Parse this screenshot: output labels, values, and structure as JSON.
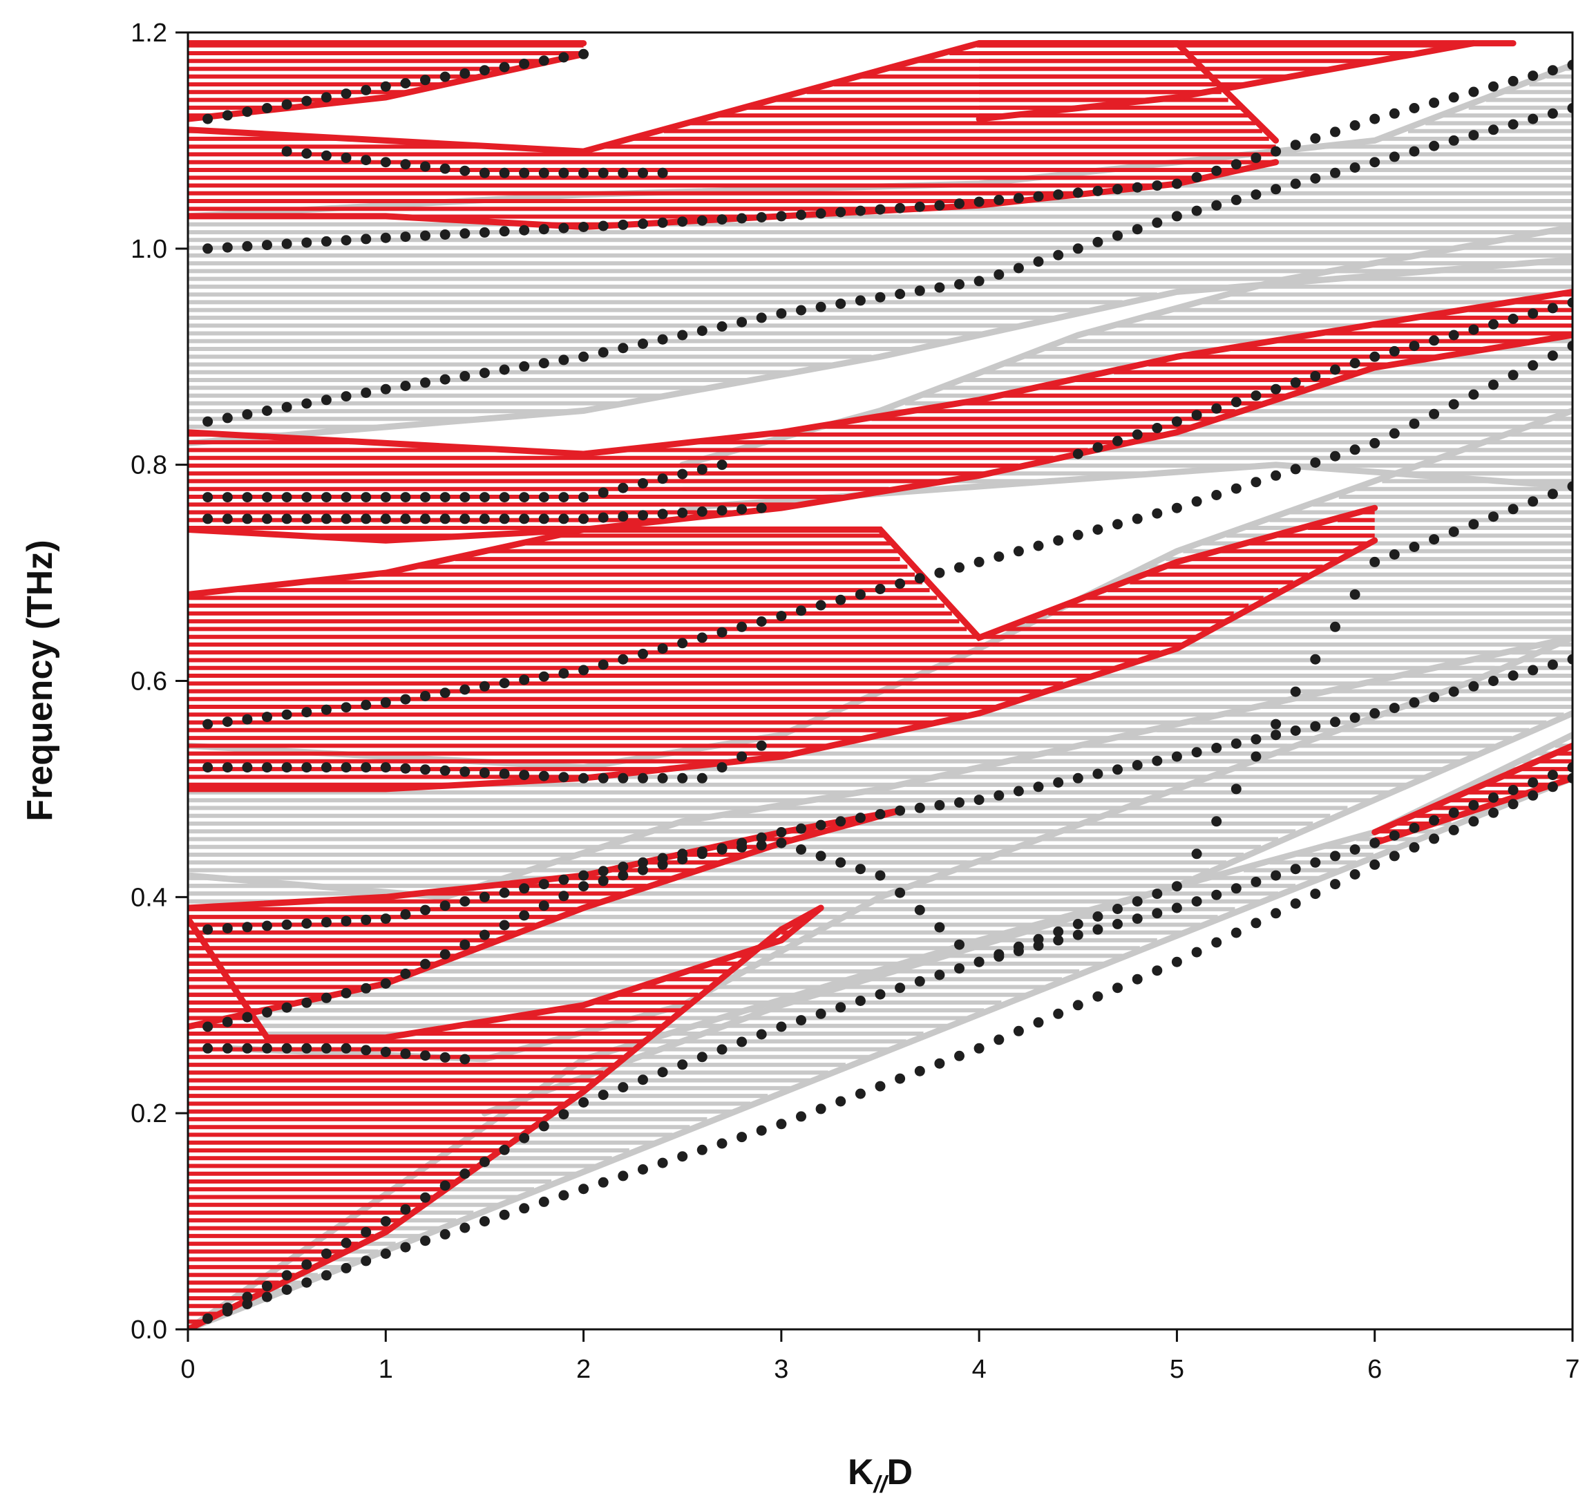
{
  "chart_data": {
    "type": "scatter",
    "title": "",
    "xlabel_main": "K",
    "xlabel_sub": "//",
    "xlabel_tail": "D",
    "ylabel": "Frequency (THz)",
    "xlim": [
      0,
      7
    ],
    "ylim": [
      0,
      1.2
    ],
    "xticks": [
      0,
      1,
      2,
      3,
      4,
      5,
      6,
      7
    ],
    "yticks": [
      0.0,
      0.2,
      0.4,
      0.6,
      0.8,
      1.0,
      1.2
    ],
    "xtick_labels": [
      "0",
      "1",
      "2",
      "3",
      "4",
      "5",
      "6",
      "7"
    ],
    "ytick_labels": [
      "0.0",
      "0.2",
      "0.4",
      "0.6",
      "0.8",
      "1.0",
      "1.2"
    ],
    "grid": false,
    "legend": "none",
    "colors": {
      "band_red": "#e41e26",
      "band_gray": "#c8c8c8",
      "dots": "#1e1e1e",
      "axis": "#111111"
    },
    "bands": [
      {
        "name": "gray-band-1",
        "color": "gray",
        "lower": [
          [
            0,
            0
          ],
          [
            7,
            0.51
          ]
        ],
        "upper": [
          [
            0,
            0
          ],
          [
            2,
            0.25
          ],
          [
            4,
            0.36
          ],
          [
            6,
            0.46
          ],
          [
            7,
            0.55
          ]
        ]
      },
      {
        "name": "gray-band-2",
        "color": "gray",
        "lower": [
          [
            1.5,
            0.2
          ],
          [
            3,
            0.3
          ],
          [
            5,
            0.41
          ],
          [
            7,
            0.57
          ]
        ],
        "upper": [
          [
            0,
            0.42
          ],
          [
            1.3,
            0.4
          ],
          [
            2.5,
            0.47
          ],
          [
            3.5,
            0.5
          ],
          [
            5,
            0.56
          ],
          [
            7,
            0.64
          ]
        ]
      },
      {
        "name": "gray-band-3",
        "color": "gray",
        "lower": [
          [
            0.2,
            0.26
          ],
          [
            1.5,
            0.25
          ],
          [
            2.5,
            0.3
          ],
          [
            3.5,
            0.4
          ],
          [
            5,
            0.5
          ],
          [
            6.5,
            0.6
          ],
          [
            7,
            0.64
          ]
        ],
        "upper": [
          [
            0,
            0.54
          ],
          [
            2,
            0.52
          ],
          [
            3,
            0.55
          ],
          [
            4,
            0.63
          ],
          [
            5,
            0.72
          ],
          [
            7,
            0.85
          ]
        ]
      },
      {
        "name": "gray-band-4",
        "color": "gray",
        "lower": [
          [
            2.5,
            0.76
          ],
          [
            4,
            0.78
          ],
          [
            5.5,
            0.8
          ],
          [
            7,
            0.78
          ]
        ],
        "upper": [
          [
            2.5,
            0.8
          ],
          [
            3.5,
            0.85
          ],
          [
            4.5,
            0.92
          ],
          [
            5.5,
            0.97
          ],
          [
            7,
            1.02
          ]
        ]
      },
      {
        "name": "gray-band-5",
        "color": "gray",
        "lower": [
          [
            0,
            0.82
          ],
          [
            2,
            0.85
          ],
          [
            3.5,
            0.9
          ],
          [
            5,
            0.96
          ],
          [
            7,
            0.99
          ]
        ],
        "upper": [
          [
            0,
            1.03
          ],
          [
            2,
            1.05
          ],
          [
            4,
            1.06
          ],
          [
            6,
            1.1
          ],
          [
            7,
            1.17
          ]
        ]
      },
      {
        "name": "red-band-1",
        "color": "red",
        "lower": [
          [
            0,
            0
          ],
          [
            1,
            0.09
          ],
          [
            2,
            0.22
          ],
          [
            3,
            0.37
          ],
          [
            3.2,
            0.39
          ]
        ],
        "upper": [
          [
            0,
            0.38
          ],
          [
            0.4,
            0.27
          ],
          [
            1,
            0.27
          ],
          [
            2,
            0.3
          ],
          [
            3,
            0.36
          ],
          [
            3.2,
            0.39
          ]
        ]
      },
      {
        "name": "red-band-2",
        "color": "red",
        "lower": [
          [
            0,
            0.28
          ],
          [
            1,
            0.32
          ],
          [
            2,
            0.39
          ],
          [
            3,
            0.45
          ],
          [
            3.6,
            0.48
          ]
        ],
        "upper": [
          [
            0,
            0.39
          ],
          [
            1,
            0.4
          ],
          [
            2,
            0.42
          ],
          [
            3,
            0.46
          ],
          [
            3.6,
            0.48
          ]
        ]
      },
      {
        "name": "red-band-3",
        "color": "red",
        "lower": [
          [
            0,
            0.5
          ],
          [
            1,
            0.5
          ],
          [
            2,
            0.51
          ],
          [
            3,
            0.53
          ],
          [
            4,
            0.57
          ],
          [
            5,
            0.63
          ],
          [
            6,
            0.73
          ]
        ],
        "upper": [
          [
            0,
            0.68
          ],
          [
            1,
            0.7
          ],
          [
            2,
            0.74
          ],
          [
            3,
            0.74
          ],
          [
            3.5,
            0.74
          ],
          [
            4,
            0.64
          ],
          [
            5,
            0.71
          ],
          [
            6,
            0.76
          ]
        ]
      },
      {
        "name": "red-band-4",
        "color": "red",
        "lower": [
          [
            0,
            0.74
          ],
          [
            1,
            0.73
          ],
          [
            2,
            0.74
          ],
          [
            3,
            0.76
          ],
          [
            4,
            0.79
          ],
          [
            5,
            0.83
          ],
          [
            6,
            0.89
          ],
          [
            7,
            0.92
          ]
        ],
        "upper": [
          [
            0,
            0.83
          ],
          [
            1,
            0.82
          ],
          [
            2,
            0.81
          ],
          [
            3,
            0.83
          ],
          [
            4,
            0.86
          ],
          [
            5,
            0.9
          ],
          [
            6,
            0.93
          ],
          [
            7,
            0.96
          ]
        ]
      },
      {
        "name": "red-band-5",
        "color": "red",
        "lower": [
          [
            0,
            1.03
          ],
          [
            1,
            1.03
          ],
          [
            2,
            1.02
          ],
          [
            3,
            1.03
          ],
          [
            4,
            1.04
          ],
          [
            5,
            1.06
          ],
          [
            5.5,
            1.08
          ]
        ],
        "upper": [
          [
            0,
            1.11
          ],
          [
            1,
            1.1
          ],
          [
            2,
            1.09
          ],
          [
            3,
            1.14
          ],
          [
            4,
            1.19
          ],
          [
            5,
            1.19
          ],
          [
            5.5,
            1.1
          ]
        ]
      },
      {
        "name": "red-band-6",
        "color": "red",
        "lower": [
          [
            0,
            1.12
          ],
          [
            1,
            1.14
          ],
          [
            2,
            1.18
          ]
        ],
        "upper": [
          [
            0,
            1.19
          ],
          [
            1,
            1.19
          ],
          [
            2,
            1.19
          ]
        ]
      },
      {
        "name": "red-band-7",
        "color": "red",
        "lower": [
          [
            4,
            1.12
          ],
          [
            5,
            1.14
          ],
          [
            6.5,
            1.19
          ]
        ],
        "upper": [
          [
            4,
            1.19
          ],
          [
            5,
            1.19
          ],
          [
            6.7,
            1.19
          ]
        ]
      },
      {
        "name": "red-band-8",
        "color": "red",
        "lower": [
          [
            6,
            0.45
          ],
          [
            7,
            0.51
          ]
        ],
        "upper": [
          [
            6,
            0.46
          ],
          [
            7,
            0.54
          ]
        ]
      }
    ],
    "series": [
      {
        "name": "mode-1",
        "points": [
          [
            0.1,
            0.01
          ],
          [
            1,
            0.07
          ],
          [
            2,
            0.13
          ],
          [
            3,
            0.19
          ],
          [
            4,
            0.26
          ],
          [
            5,
            0.34
          ],
          [
            6,
            0.43
          ],
          [
            7,
            0.51
          ]
        ]
      },
      {
        "name": "mode-2",
        "points": [
          [
            0.1,
            0.01
          ],
          [
            1,
            0.1
          ],
          [
            2,
            0.21
          ],
          [
            3,
            0.28
          ],
          [
            4,
            0.34
          ],
          [
            5,
            0.39
          ],
          [
            6,
            0.45
          ],
          [
            7,
            0.52
          ]
        ]
      },
      {
        "name": "mode-3",
        "points": [
          [
            0.1,
            0.26
          ],
          [
            0.8,
            0.26
          ],
          [
            1.4,
            0.25
          ]
        ]
      },
      {
        "name": "mode-4",
        "points": [
          [
            0.1,
            0.28
          ],
          [
            1,
            0.32
          ],
          [
            2,
            0.41
          ],
          [
            3,
            0.46
          ],
          [
            3.6,
            0.48
          ],
          [
            4,
            0.49
          ],
          [
            5,
            0.53
          ],
          [
            6,
            0.57
          ],
          [
            7,
            0.62
          ]
        ]
      },
      {
        "name": "mode-5",
        "points": [
          [
            0.1,
            0.37
          ],
          [
            1,
            0.38
          ],
          [
            2,
            0.42
          ],
          [
            2.5,
            0.44
          ],
          [
            3,
            0.45
          ],
          [
            3.5,
            0.42
          ],
          [
            4,
            0.34
          ],
          [
            5,
            0.41
          ],
          [
            6,
            0.71
          ],
          [
            7,
            0.78
          ]
        ]
      },
      {
        "name": "mode-6",
        "points": [
          [
            0.1,
            0.52
          ],
          [
            1,
            0.52
          ],
          [
            2,
            0.51
          ],
          [
            2.6,
            0.51
          ],
          [
            2.9,
            0.54
          ]
        ]
      },
      {
        "name": "mode-7",
        "points": [
          [
            0.1,
            0.56
          ],
          [
            1,
            0.58
          ],
          [
            2,
            0.61
          ],
          [
            3,
            0.66
          ],
          [
            4,
            0.71
          ],
          [
            5,
            0.76
          ],
          [
            6,
            0.82
          ],
          [
            7,
            0.91
          ]
        ]
      },
      {
        "name": "mode-8",
        "points": [
          [
            0.1,
            0.75
          ],
          [
            1,
            0.75
          ],
          [
            2,
            0.75
          ],
          [
            2.9,
            0.76
          ]
        ]
      },
      {
        "name": "mode-9",
        "points": [
          [
            0.1,
            0.77
          ],
          [
            1,
            0.77
          ],
          [
            2,
            0.77
          ],
          [
            2.7,
            0.8
          ]
        ]
      },
      {
        "name": "mode-10",
        "points": [
          [
            4.5,
            0.81
          ],
          [
            5,
            0.84
          ],
          [
            6,
            0.9
          ],
          [
            7,
            0.95
          ]
        ]
      },
      {
        "name": "mode-11",
        "points": [
          [
            0.1,
            0.84
          ],
          [
            1,
            0.87
          ],
          [
            2,
            0.9
          ],
          [
            3,
            0.94
          ],
          [
            4,
            0.97
          ],
          [
            5,
            1.03
          ],
          [
            6,
            1.08
          ],
          [
            7,
            1.13
          ]
        ]
      },
      {
        "name": "mode-12",
        "points": [
          [
            0.1,
            1.0
          ],
          [
            1,
            1.01
          ],
          [
            2,
            1.02
          ],
          [
            3,
            1.03
          ],
          [
            3.8,
            1.04
          ],
          [
            5,
            1.06
          ],
          [
            6,
            1.12
          ],
          [
            7,
            1.17
          ]
        ]
      },
      {
        "name": "mode-13",
        "points": [
          [
            0.5,
            1.09
          ],
          [
            1,
            1.08
          ],
          [
            1.5,
            1.07
          ],
          [
            2.4,
            1.07
          ]
        ]
      },
      {
        "name": "mode-14",
        "points": [
          [
            0.1,
            1.12
          ],
          [
            1,
            1.15
          ],
          [
            2,
            1.18
          ]
        ]
      }
    ]
  }
}
